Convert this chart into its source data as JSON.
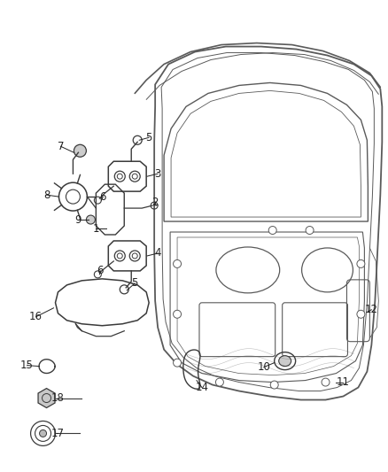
{
  "bg_color": "#ffffff",
  "lc": "#5a5a5a",
  "dc": "#3a3a3a",
  "figsize": [
    4.38,
    5.33
  ],
  "dpi": 100
}
